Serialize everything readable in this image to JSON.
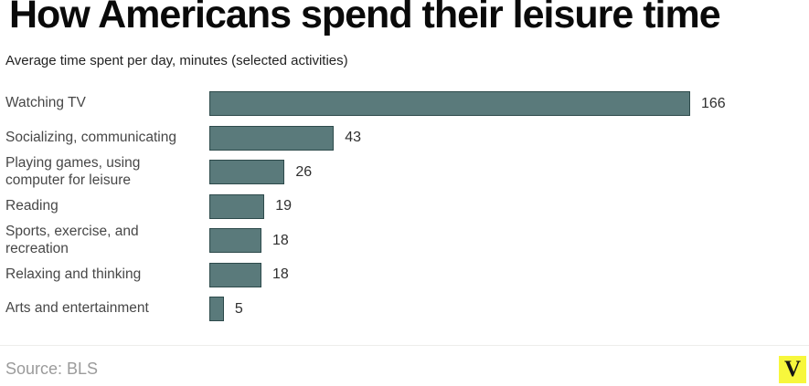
{
  "header": {
    "title": "How Americans spend their leisure time",
    "subtitle": "Average time spent per day, minutes (selected activities)"
  },
  "footer": {
    "source": "Source: BLS",
    "logo_letter": "V",
    "logo_bg_color": "#f7f73c"
  },
  "chart_data": {
    "type": "bar",
    "orientation": "horizontal",
    "title": "How Americans spend their leisure time",
    "subtitle": "Average time spent per day, minutes (selected activities)",
    "xlabel": "",
    "ylabel": "",
    "xlim": [
      0,
      166
    ],
    "grid": false,
    "legend": false,
    "value_labels_shown": true,
    "bar_color": "#5a7a7b",
    "bar_border_color": "#2d4a4b",
    "categories": [
      "Watching TV",
      "Socializing, communicating",
      "Playing games, using computer for leisure",
      "Reading",
      "Sports, exercise, and recreation",
      "Relaxing and thinking",
      "Arts and entertainment"
    ],
    "values": [
      166,
      43,
      26,
      19,
      18,
      18,
      5
    ]
  }
}
